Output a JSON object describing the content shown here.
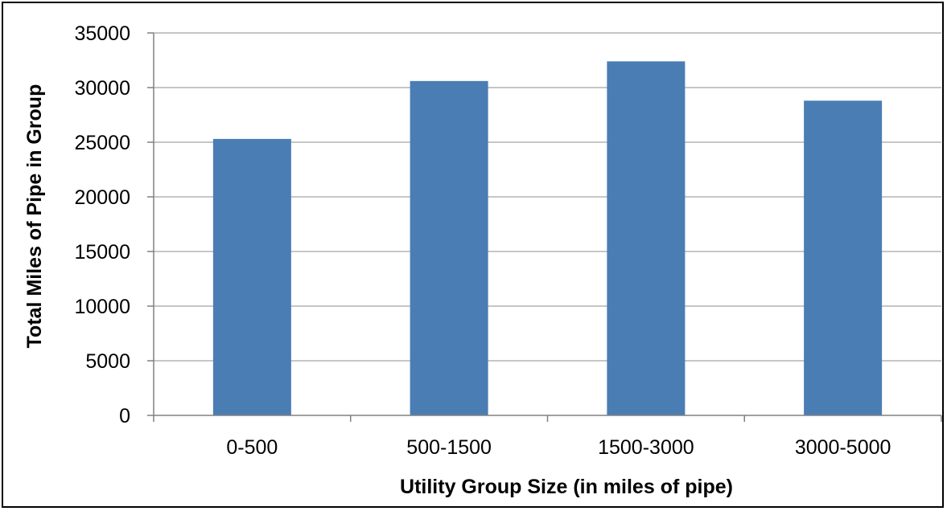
{
  "chart_data": {
    "type": "bar",
    "categories": [
      "0-500",
      "500-1500",
      "1500-3000",
      "3000-5000"
    ],
    "values": [
      25300,
      30600,
      32400,
      28800
    ],
    "title": "",
    "xlabel": "Utility Group Size (in miles of pipe)",
    "ylabel": "Total Miles of Pipe in Group",
    "ylim": [
      0,
      35000
    ],
    "yticks": [
      "0",
      "5000",
      "10000",
      "15000",
      "20000",
      "25000",
      "30000",
      "35000"
    ],
    "grid": true,
    "legend": "none",
    "colors": {
      "bar": "#4a7db4",
      "grid": "#b3b3b3",
      "axis": "#808080"
    }
  }
}
